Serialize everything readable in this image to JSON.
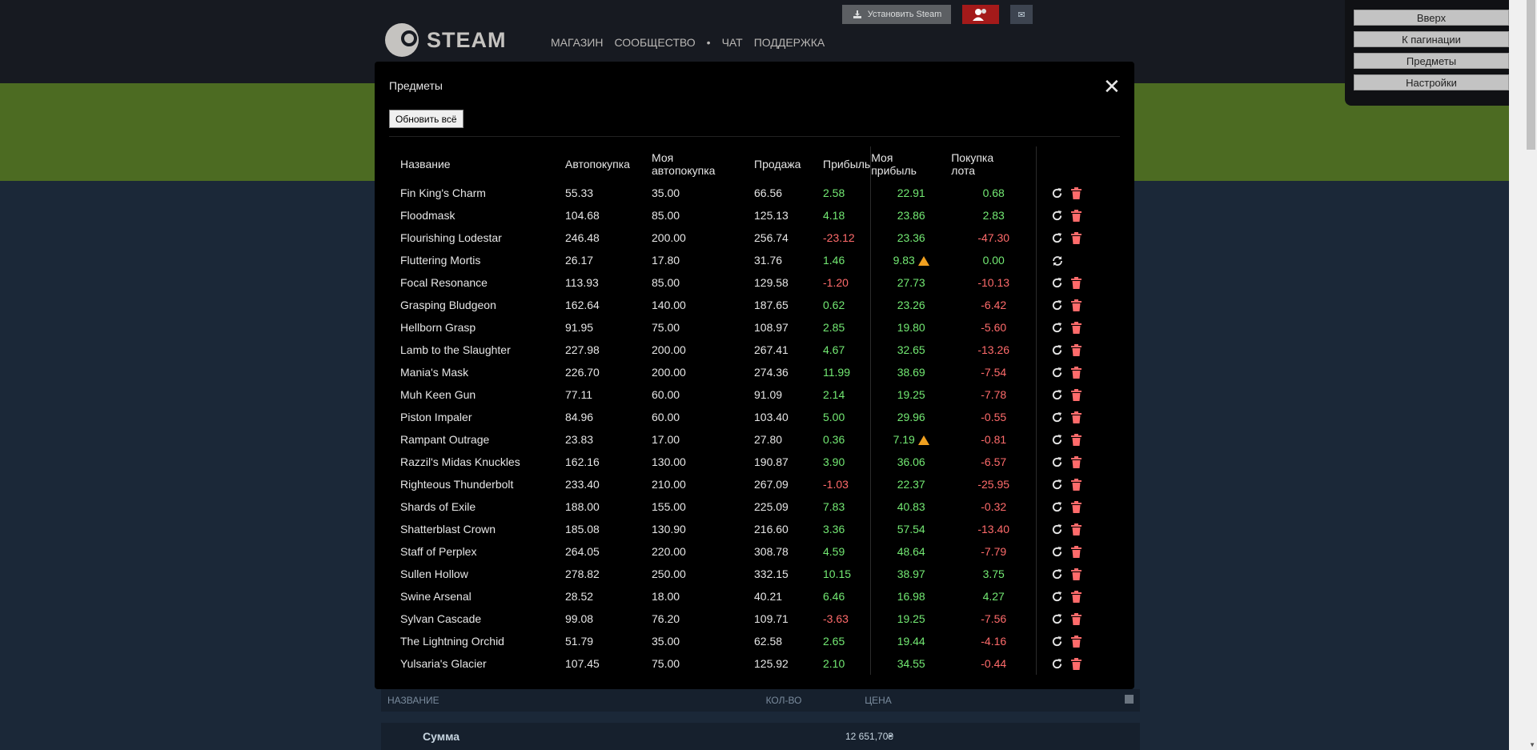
{
  "header": {
    "logo_text": "STEAM",
    "nav": [
      "МАГАЗИН",
      "СООБЩЕСТВО",
      "•",
      "ЧАТ",
      "ПОДДЕРЖКА"
    ],
    "install_label": "Установить Steam",
    "mail_glyph": "✉"
  },
  "right_panel": {
    "buttons": [
      "Вверх",
      "К пагинации",
      "Предметы",
      "Настройки"
    ]
  },
  "bottom_table": {
    "col_name": "НАЗВАНИЕ",
    "col_qty": "КОЛ-ВО",
    "col_price": "ЦЕНА",
    "sum_label": "Сумма",
    "sum_value": "12 651,70₴"
  },
  "modal": {
    "title": "Предметы",
    "close_glyph": "✕",
    "refresh_all_label": "Обновить всё",
    "columns": {
      "name": "Название",
      "autobuy": "Автопокупка",
      "my_autobuy_line1": "Моя",
      "my_autobuy_line2": "автопокупка",
      "sale": "Продажа",
      "profit": "Прибыль",
      "my_profit_line1": "Моя",
      "my_profit_line2": "прибыль",
      "lot_line1": "Покупка",
      "lot_line2": "лота"
    },
    "rows": [
      {
        "name": "Fin King's Charm",
        "autobuy": "55.33",
        "my_autobuy": "35.00",
        "sale": "66.56",
        "profit": "2.58",
        "my_profit": "22.91",
        "lot": "0.68",
        "warn": false,
        "spinner": false
      },
      {
        "name": "Floodmask",
        "autobuy": "104.68",
        "my_autobuy": "85.00",
        "sale": "125.13",
        "profit": "4.18",
        "my_profit": "23.86",
        "lot": "2.83",
        "warn": false,
        "spinner": false
      },
      {
        "name": "Flourishing Lodestar",
        "autobuy": "246.48",
        "my_autobuy": "200.00",
        "sale": "256.74",
        "profit": "-23.12",
        "my_profit": "23.36",
        "lot": "-47.30",
        "warn": false,
        "spinner": false
      },
      {
        "name": "Fluttering Mortis",
        "autobuy": "26.17",
        "my_autobuy": "17.80",
        "sale": "31.76",
        "profit": "1.46",
        "my_profit": "9.83",
        "lot": "0.00",
        "warn": true,
        "spinner": true
      },
      {
        "name": "Focal Resonance",
        "autobuy": "113.93",
        "my_autobuy": "85.00",
        "sale": "129.58",
        "profit": "-1.20",
        "my_profit": "27.73",
        "lot": "-10.13",
        "warn": false,
        "spinner": false
      },
      {
        "name": "Grasping Bludgeon",
        "autobuy": "162.64",
        "my_autobuy": "140.00",
        "sale": "187.65",
        "profit": "0.62",
        "my_profit": "23.26",
        "lot": "-6.42",
        "warn": false,
        "spinner": false
      },
      {
        "name": "Hellborn Grasp",
        "autobuy": "91.95",
        "my_autobuy": "75.00",
        "sale": "108.97",
        "profit": "2.85",
        "my_profit": "19.80",
        "lot": "-5.60",
        "warn": false,
        "spinner": false
      },
      {
        "name": "Lamb to the Slaughter",
        "autobuy": "227.98",
        "my_autobuy": "200.00",
        "sale": "267.41",
        "profit": "4.67",
        "my_profit": "32.65",
        "lot": "-13.26",
        "warn": false,
        "spinner": false
      },
      {
        "name": "Mania's Mask",
        "autobuy": "226.70",
        "my_autobuy": "200.00",
        "sale": "274.36",
        "profit": "11.99",
        "my_profit": "38.69",
        "lot": "-7.54",
        "warn": false,
        "spinner": false
      },
      {
        "name": "Muh Keen Gun",
        "autobuy": "77.11",
        "my_autobuy": "60.00",
        "sale": "91.09",
        "profit": "2.14",
        "my_profit": "19.25",
        "lot": "-7.78",
        "warn": false,
        "spinner": false
      },
      {
        "name": "Piston Impaler",
        "autobuy": "84.96",
        "my_autobuy": "60.00",
        "sale": "103.40",
        "profit": "5.00",
        "my_profit": "29.96",
        "lot": "-0.55",
        "warn": false,
        "spinner": false
      },
      {
        "name": "Rampant Outrage",
        "autobuy": "23.83",
        "my_autobuy": "17.00",
        "sale": "27.80",
        "profit": "0.36",
        "my_profit": "7.19",
        "lot": "-0.81",
        "warn": true,
        "spinner": false
      },
      {
        "name": "Razzil's Midas Knuckles",
        "autobuy": "162.16",
        "my_autobuy": "130.00",
        "sale": "190.87",
        "profit": "3.90",
        "my_profit": "36.06",
        "lot": "-6.57",
        "warn": false,
        "spinner": false
      },
      {
        "name": "Righteous Thunderbolt",
        "autobuy": "233.40",
        "my_autobuy": "210.00",
        "sale": "267.09",
        "profit": "-1.03",
        "my_profit": "22.37",
        "lot": "-25.95",
        "warn": false,
        "spinner": false
      },
      {
        "name": "Shards of Exile",
        "autobuy": "188.00",
        "my_autobuy": "155.00",
        "sale": "225.09",
        "profit": "7.83",
        "my_profit": "40.83",
        "lot": "-0.32",
        "warn": false,
        "spinner": false
      },
      {
        "name": "Shatterblast Crown",
        "autobuy": "185.08",
        "my_autobuy": "130.90",
        "sale": "216.60",
        "profit": "3.36",
        "my_profit": "57.54",
        "lot": "-13.40",
        "warn": false,
        "spinner": false
      },
      {
        "name": "Staff of Perplex",
        "autobuy": "264.05",
        "my_autobuy": "220.00",
        "sale": "308.78",
        "profit": "4.59",
        "my_profit": "48.64",
        "lot": "-7.79",
        "warn": false,
        "spinner": false
      },
      {
        "name": "Sullen Hollow",
        "autobuy": "278.82",
        "my_autobuy": "250.00",
        "sale": "332.15",
        "profit": "10.15",
        "my_profit": "38.97",
        "lot": "3.75",
        "warn": false,
        "spinner": false
      },
      {
        "name": "Swine Arsenal",
        "autobuy": "28.52",
        "my_autobuy": "18.00",
        "sale": "40.21",
        "profit": "6.46",
        "my_profit": "16.98",
        "lot": "4.27",
        "warn": false,
        "spinner": false
      },
      {
        "name": "Sylvan Cascade",
        "autobuy": "99.08",
        "my_autobuy": "76.20",
        "sale": "109.71",
        "profit": "-3.63",
        "my_profit": "19.25",
        "lot": "-7.56",
        "warn": false,
        "spinner": false
      },
      {
        "name": "The Lightning Orchid",
        "autobuy": "51.79",
        "my_autobuy": "35.00",
        "sale": "62.58",
        "profit": "2.65",
        "my_profit": "19.44",
        "lot": "-4.16",
        "warn": false,
        "spinner": false
      },
      {
        "name": "Yulsaria's Glacier",
        "autobuy": "107.45",
        "my_autobuy": "75.00",
        "sale": "125.92",
        "profit": "2.10",
        "my_profit": "34.55",
        "lot": "-0.44",
        "warn": false,
        "spinner": false
      }
    ]
  },
  "icons": {
    "refresh": "refresh-icon",
    "trash": "trash-icon",
    "spinner": "sync-icon",
    "warning": "warning-icon"
  },
  "colors": {
    "positive": "#73e973",
    "negative": "#ff6b6b",
    "warning": "#f0a020",
    "trash": "#ff6b6b"
  }
}
